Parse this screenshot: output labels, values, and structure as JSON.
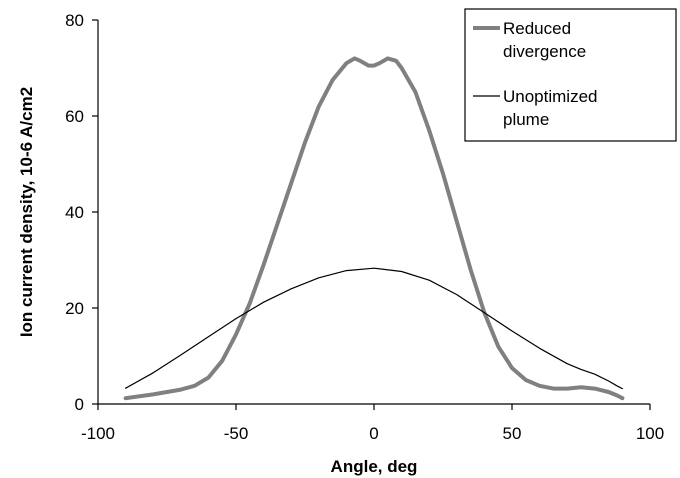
{
  "chart_data": {
    "type": "line",
    "title": "",
    "xlabel": "Angle, deg",
    "ylabel": "Ion current density, 10-6 A/cm2",
    "xlim": [
      -100,
      100
    ],
    "ylim": [
      0,
      80
    ],
    "x_ticks": [
      "-100",
      "-50",
      "0",
      "50",
      "100"
    ],
    "y_ticks": [
      "0",
      "20",
      "40",
      "60",
      "80"
    ],
    "x_tick_values": [
      -100,
      -50,
      0,
      50,
      100
    ],
    "y_tick_values": [
      0,
      20,
      40,
      60,
      80
    ],
    "grid": false,
    "legend_position": "top-right",
    "series": [
      {
        "name": "Reduced divergence",
        "label_lines": [
          "Reduced",
          "divergence"
        ],
        "color": "#808080",
        "style": "thick",
        "x": [
          -90,
          -80,
          -70,
          -65,
          -60,
          -55,
          -50,
          -45,
          -40,
          -35,
          -30,
          -25,
          -20,
          -15,
          -10,
          -7,
          -5,
          -2,
          0,
          2,
          5,
          8,
          10,
          15,
          20,
          25,
          30,
          35,
          40,
          45,
          50,
          55,
          60,
          65,
          70,
          75,
          80,
          85,
          88,
          90
        ],
        "y": [
          1.2,
          2.0,
          3.0,
          3.8,
          5.5,
          9.0,
          14.5,
          21.0,
          29.0,
          37.5,
          46.0,
          54.5,
          62.0,
          67.5,
          71.0,
          72.0,
          71.5,
          70.5,
          70.5,
          71.0,
          72.0,
          71.5,
          70.0,
          65.0,
          57.0,
          48.0,
          38.0,
          28.0,
          19.0,
          12.0,
          7.5,
          5.0,
          3.8,
          3.2,
          3.2,
          3.5,
          3.2,
          2.5,
          1.8,
          1.2
        ]
      },
      {
        "name": "Unoptimized plume",
        "label_lines": [
          "Unoptimized",
          "plume"
        ],
        "color": "#000000",
        "style": "thin",
        "x": [
          -90,
          -80,
          -70,
          -60,
          -50,
          -40,
          -30,
          -20,
          -10,
          0,
          10,
          20,
          30,
          40,
          50,
          60,
          70,
          75,
          80,
          85,
          88,
          90
        ],
        "y": [
          3.3,
          6.5,
          10.2,
          14.0,
          17.8,
          21.2,
          24.0,
          26.3,
          27.8,
          28.3,
          27.6,
          25.8,
          22.8,
          19.0,
          15.2,
          11.6,
          8.4,
          7.2,
          6.2,
          4.8,
          3.8,
          3.2
        ]
      }
    ]
  }
}
